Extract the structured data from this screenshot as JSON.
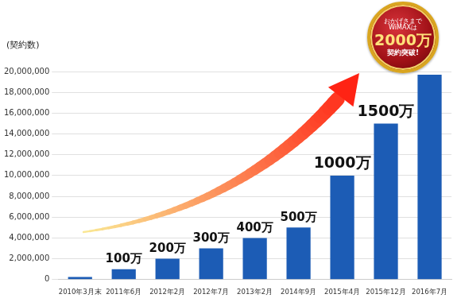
{
  "chart_data": {
    "type": "bar",
    "ylabel": "(契約数)",
    "categories": [
      "2010年3月末",
      "2011年6月",
      "2012年2月",
      "2012年7月",
      "2013年2月",
      "2014年9月",
      "2015年4月",
      "2015年12月",
      "2016年7月"
    ],
    "values": [
      250000,
      1000000,
      2000000,
      3000000,
      4000000,
      5000000,
      10000000,
      15000000,
      19700000
    ],
    "value_labels": [
      null,
      "100万",
      "200万",
      "300万",
      "400万",
      "500万",
      "1000万",
      "1500万",
      null
    ],
    "data_labels": true,
    "color": "#1c5cb5",
    "ylim": [
      0,
      20000000
    ],
    "yticks": [
      0,
      {
        "value": 2000000,
        "label": "2,000,000"
      },
      {
        "value": 4000000,
        "label": "4,000,000"
      },
      {
        "value": 6000000,
        "label": "6,000,000"
      },
      {
        "value": 8000000,
        "label": "8,000,000"
      },
      {
        "value": 10000000,
        "label": "10,000,000"
      },
      {
        "value": 12000000,
        "label": "12,000,000"
      },
      {
        "value": 14000000,
        "label": "14,000,000"
      },
      {
        "value": 16000000,
        "label": "16,000,000"
      },
      {
        "value": 18000000,
        "label": "18,000,000"
      },
      {
        "value": 20000000,
        "label": "20,000,000"
      }
    ],
    "grid": true,
    "annotations": [
      "おかげさまで",
      "WiMAXは",
      "2000万",
      "契約突破!"
    ]
  }
}
